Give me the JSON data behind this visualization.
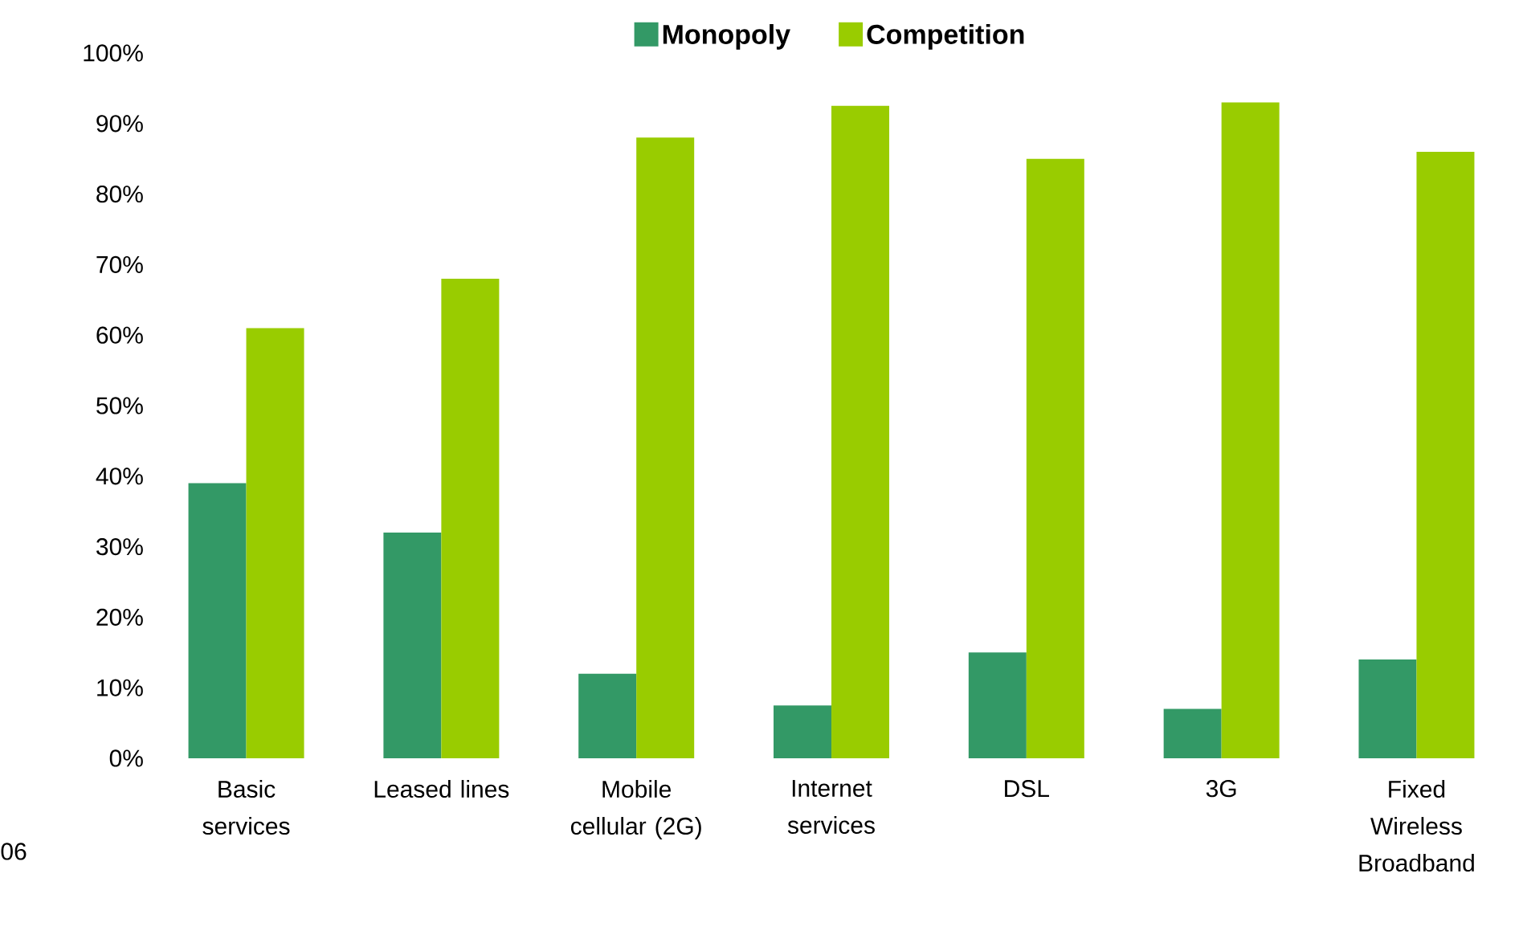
{
  "chart_data": {
    "type": "bar",
    "categories": [
      "Basic services",
      "Leased lines",
      "Mobile cellular (2G)",
      "Internet services",
      "DSL",
      "3G",
      "Fixed Wireless Broadband"
    ],
    "series": [
      {
        "name": "Monopoly",
        "color": "#339966",
        "values": [
          39,
          32,
          12,
          7.5,
          15,
          7,
          14
        ]
      },
      {
        "name": "Competition",
        "color": "#99cc00",
        "values": [
          61,
          68,
          88,
          92.5,
          85,
          93,
          86
        ]
      }
    ],
    "ylim": [
      0,
      100
    ],
    "yticks": [
      {
        "value": 0,
        "label": "0%"
      },
      {
        "value": 10,
        "label": "10%"
      },
      {
        "value": 20,
        "label": "20%"
      },
      {
        "value": 30,
        "label": "30%"
      },
      {
        "value": 40,
        "label": "40%"
      },
      {
        "value": 50,
        "label": "50%"
      },
      {
        "value": 60,
        "label": "60%"
      },
      {
        "value": 70,
        "label": "70%"
      },
      {
        "value": 80,
        "label": "80%"
      },
      {
        "value": 90,
        "label": "90%"
      },
      {
        "value": 100,
        "label": "100%"
      }
    ],
    "grid": false,
    "legend": "top",
    "annotations": [
      "06"
    ]
  }
}
